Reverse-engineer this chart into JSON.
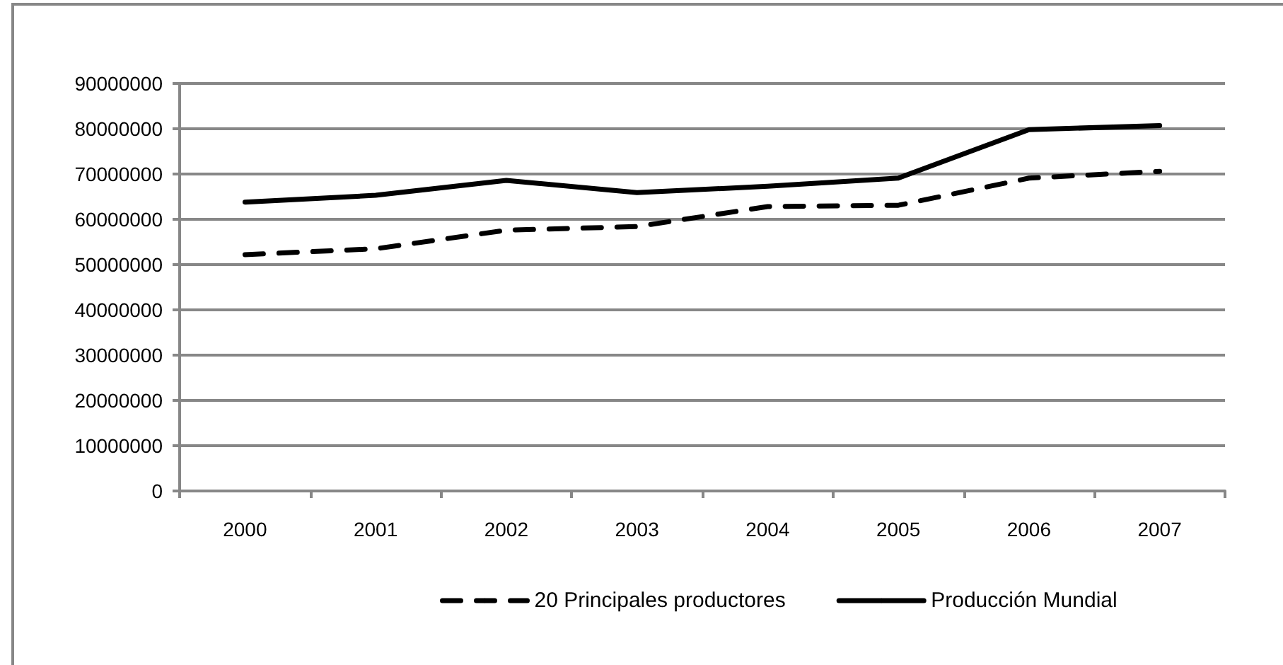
{
  "chart_data": {
    "type": "line",
    "categories": [
      "2000",
      "2001",
      "2002",
      "2003",
      "2004",
      "2005",
      "2006",
      "2007"
    ],
    "series": [
      {
        "name": "20 Principales productores",
        "color": "#000000",
        "line_style": "dashed",
        "values": [
          52200000,
          53500000,
          57600000,
          58400000,
          62800000,
          63100000,
          69100000,
          70600000
        ]
      },
      {
        "name": "Producción Mundial",
        "color": "#000000",
        "line_style": "solid",
        "values": [
          63800000,
          65300000,
          68600000,
          65900000,
          67300000,
          69100000,
          79800000,
          80700000
        ]
      }
    ],
    "ylim": [
      0,
      90000000
    ],
    "yticks": [
      0,
      10000000,
      20000000,
      30000000,
      40000000,
      50000000,
      60000000,
      70000000,
      80000000,
      90000000
    ],
    "grid": "y",
    "legend": "bottom",
    "marker": "none"
  }
}
